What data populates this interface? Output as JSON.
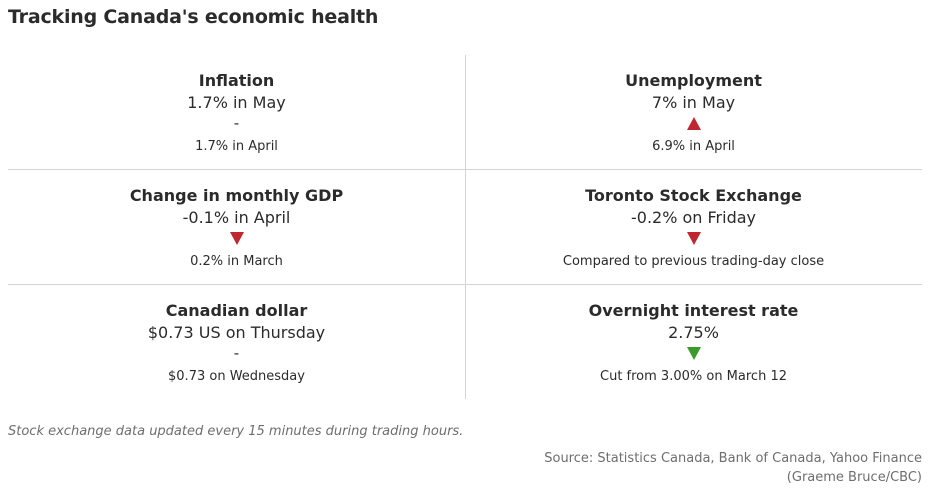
{
  "title": "Tracking Canada's economic health",
  "indicators": [
    {
      "label": "Inflation",
      "value": "1.7% in May",
      "change_symbol": "-",
      "change_direction": "none",
      "comparison": "1.7% in April"
    },
    {
      "label": "Unemployment",
      "value": "7% in May",
      "change_symbol": "",
      "change_direction": "up",
      "change_color": "#c0262d",
      "comparison": "6.9% in April"
    },
    {
      "label": "Change in monthly GDP",
      "value": "-0.1% in April",
      "change_symbol": "",
      "change_direction": "down",
      "change_color": "#c0262d",
      "comparison": "0.2% in March"
    },
    {
      "label": "Toronto Stock Exchange",
      "value": "-0.2% on Friday",
      "change_symbol": "",
      "change_direction": "down",
      "change_color": "#c0262d",
      "comparison": "Compared to previous trading-day close"
    },
    {
      "label": "Canadian dollar",
      "value": "$0.73 US on Thursday",
      "change_symbol": "-",
      "change_direction": "none",
      "comparison": "$0.73 on Wednesday"
    },
    {
      "label": "Overnight interest rate",
      "value": "2.75%",
      "change_symbol": "",
      "change_direction": "down",
      "change_color": "#3a9a2a",
      "comparison": "Cut from 3.00% on March 12"
    }
  ],
  "footer": {
    "note": "Stock exchange data updated every 15 minutes during trading hours.",
    "source_line1": "Source: Statistics Canada, Bank of Canada, Yahoo Finance",
    "source_line2": "(Graeme Bruce/CBC)"
  }
}
